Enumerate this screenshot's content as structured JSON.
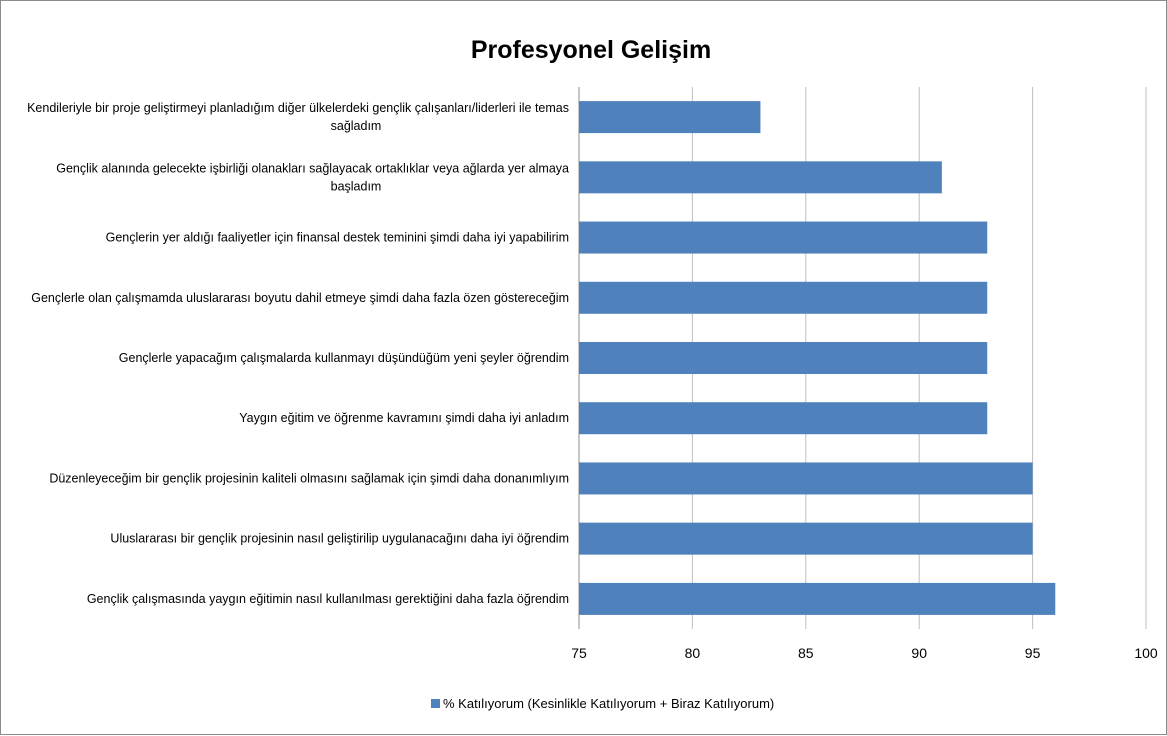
{
  "chart_data": {
    "type": "bar",
    "orientation": "horizontal",
    "title": "Profesyonel Gelişim",
    "categories": [
      [
        "Kendileriyle bir proje geliştirmeyi planladığım diğer ülkelerdeki gençlik çalışanları/liderleri ile temas",
        "sağladım"
      ],
      [
        "Gençlik alanında gelecekte işbirliği olanakları sağlayacak ortaklıklar veya ağlarda yer almaya",
        "başladım"
      ],
      [
        "Gençlerin yer aldığı faaliyetler için finansal destek teminini şimdi daha iyi yapabilirim"
      ],
      [
        "Gençlerle olan çalışmamda uluslararası boyutu dahil etmeye şimdi daha fazla özen göstereceğim"
      ],
      [
        "Gençlerle yapacağım çalışmalarda kullanmayı düşündüğüm yeni şeyler öğrendim"
      ],
      [
        "Yaygın eğitim ve öğrenme kavramını şimdi daha iyi anladım"
      ],
      [
        "Düzenleyeceğim bir gençlik projesinin kaliteli olmasını sağlamak için şimdi daha donanımlıyım"
      ],
      [
        "Uluslararası bir gençlik projesinin nasıl geliştirilip uygulanacağını daha iyi öğrendim"
      ],
      [
        "Gençlik çalışmasında yaygın eğitimin nasıl kullanılması gerektiğini daha fazla öğrendim"
      ]
    ],
    "series": [
      {
        "name": "% Katılıyorum (Kesinlikle Katılıyorum + Biraz Katılıyorum)",
        "values": [
          83,
          91,
          93,
          93,
          93,
          93,
          95,
          95,
          96
        ],
        "color": "#4f81bd"
      }
    ],
    "xlim": [
      75,
      100
    ],
    "xticks": [
      75,
      80,
      85,
      90,
      95,
      100
    ],
    "grid": "vertical",
    "legend_position": "bottom"
  }
}
